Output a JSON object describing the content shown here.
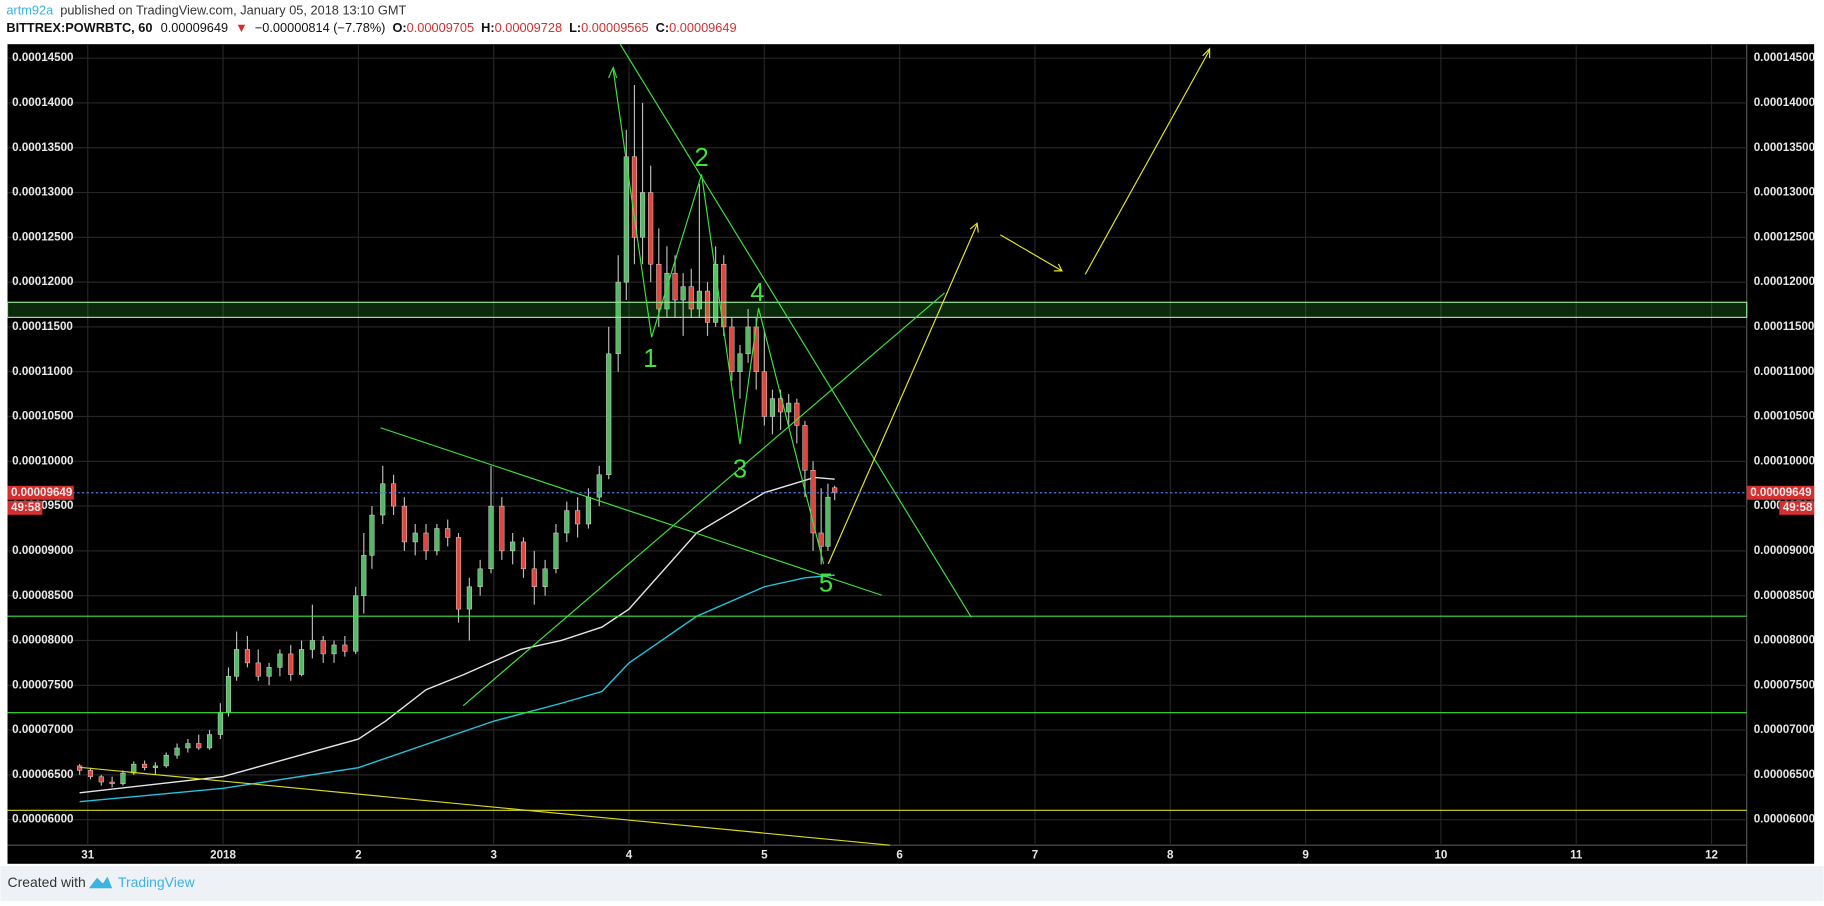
{
  "header": {
    "author": "artm92a",
    "published": "published on TradingView.com, January 05, 2018 13:10 GMT",
    "symbol": "BITTREX:POWRBTC, 60",
    "last": "0.00009649",
    "arrow": "▼",
    "change": "−0.00000814 (−7.78%)",
    "o_label": "O:",
    "o": "0.00009705",
    "h_label": "H:",
    "h": "0.00009728",
    "l_label": "L:",
    "l": "0.00009565",
    "c_label": "C:",
    "c": "0.00009649"
  },
  "chart_data": {
    "type": "candlestick",
    "up_color": "#53b964",
    "down_color": "#e0463c",
    "grid": true,
    "xlim": [
      -0.593,
      12.26
    ],
    "ylim": [
      5.715e-05,
      0.00014656
    ],
    "xticks": [
      {
        "value": 0,
        "label": "31"
      },
      {
        "value": 1,
        "label": "2018"
      },
      2,
      3,
      4,
      5,
      6,
      7,
      8,
      9,
      10,
      11,
      12
    ],
    "yticks": [
      {
        "value": 6e-05,
        "label": "0.00006000"
      },
      {
        "value": 6.5e-05,
        "label": "0.00006500"
      },
      {
        "value": 7e-05,
        "label": "0.00007000"
      },
      {
        "value": 7.5e-05,
        "label": "0.00007500"
      },
      {
        "value": 8e-05,
        "label": "0.00008000"
      },
      {
        "value": 8.5e-05,
        "label": "0.00008500"
      },
      {
        "value": 9e-05,
        "label": "0.00009000"
      },
      {
        "value": 9.5e-05,
        "label": "0.00009500"
      },
      {
        "value": 0.0001,
        "label": "0.00010000"
      },
      {
        "value": 0.000105,
        "label": "0.00010500"
      },
      {
        "value": 0.00011,
        "label": "0.00011000"
      },
      {
        "value": 0.000115,
        "label": "0.00011500"
      },
      {
        "value": 0.00012,
        "label": "0.00012000"
      },
      {
        "value": 0.000125,
        "label": "0.00012500"
      },
      {
        "value": 0.00013,
        "label": "0.00013000"
      },
      {
        "value": 0.000135,
        "label": "0.00013500"
      },
      {
        "value": 0.00014,
        "label": "0.00014000"
      },
      {
        "value": 0.000145,
        "label": "0.00014500"
      }
    ],
    "x": [
      -0.06,
      0.02,
      0.1,
      0.18,
      0.26,
      0.34,
      0.42,
      0.5,
      0.58,
      0.66,
      0.74,
      0.82,
      0.9,
      0.98,
      1.04,
      1.1,
      1.18,
      1.26,
      1.34,
      1.42,
      1.5,
      1.58,
      1.66,
      1.74,
      1.82,
      1.9,
      1.98,
      2.04,
      2.1,
      2.18,
      2.26,
      2.34,
      2.42,
      2.5,
      2.58,
      2.66,
      2.74,
      2.82,
      2.9,
      2.98,
      3.06,
      3.14,
      3.22,
      3.3,
      3.38,
      3.46,
      3.54,
      3.62,
      3.7,
      3.78,
      3.85,
      3.92,
      3.98,
      4.04,
      4.1,
      4.16,
      4.22,
      4.28,
      4.34,
      4.4,
      4.46,
      4.52,
      4.58,
      4.64,
      4.7,
      4.76,
      4.82,
      4.88,
      4.94,
      5.0,
      5.06,
      5.12,
      5.18,
      5.24,
      5.3,
      5.36,
      5.42,
      5.47,
      5.52
    ],
    "open": [
      6.6e-05,
      6.55e-05,
      6.48e-05,
      6.42e-05,
      6.4e-05,
      6.52e-05,
      6.62e-05,
      6.58e-05,
      6.6e-05,
      6.72e-05,
      6.8e-05,
      6.85e-05,
      6.8e-05,
      6.95e-05,
      7.2e-05,
      7.6e-05,
      7.9e-05,
      7.75e-05,
      7.6e-05,
      7.7e-05,
      7.85e-05,
      7.62e-05,
      7.9e-05,
      8e-05,
      7.85e-05,
      7.95e-05,
      7.88e-05,
      8.5e-05,
      8.95e-05,
      9.4e-05,
      9.75e-05,
      9.5e-05,
      9.1e-05,
      9.2e-05,
      9e-05,
      9.25e-05,
      9.15e-05,
      8.35e-05,
      8.6e-05,
      8.8e-05,
      9.5e-05,
      9e-05,
      9.1e-05,
      8.8e-05,
      8.6e-05,
      8.8e-05,
      9.2e-05,
      9.45e-05,
      9.3e-05,
      9.6e-05,
      9.85e-05,
      0.000112,
      0.00012,
      0.000134,
      0.000125,
      0.00013,
      0.000122,
      0.000117,
      0.000121,
      0.000118,
      0.0001195,
      0.000117,
      0.000119,
      0.0001155,
      0.000122,
      0.000115,
      0.00011,
      0.000112,
      0.000115,
      0.00011,
      0.000105,
      0.000107,
      0.0001055,
      0.0001065,
      0.000104,
      9.9e-05,
      9.2e-05,
      9.05e-05,
      9.705e-05
    ],
    "high": [
      6.62e-05,
      6.58e-05,
      6.5e-05,
      6.48e-05,
      6.55e-05,
      6.65e-05,
      6.66e-05,
      6.64e-05,
      6.75e-05,
      6.85e-05,
      6.9e-05,
      6.95e-05,
      7e-05,
      7.3e-05,
      7.7e-05,
      8.1e-05,
      8.05e-05,
      7.9e-05,
      7.75e-05,
      7.9e-05,
      7.95e-05,
      8e-05,
      8.4e-05,
      8.05e-05,
      8e-05,
      8.05e-05,
      8.6e-05,
      9.2e-05,
      9.5e-05,
      9.95e-05,
      9.85e-05,
      9.6e-05,
      9.3e-05,
      9.3e-05,
      9.3e-05,
      9.35e-05,
      9.2e-05,
      8.7e-05,
      8.9e-05,
      9.95e-05,
      9.6e-05,
      9.2e-05,
      9.15e-05,
      9e-05,
      8.9e-05,
      9.3e-05,
      9.55e-05,
      9.6e-05,
      9.7e-05,
      9.95e-05,
      0.000115,
      0.000123,
      0.000137,
      0.000142,
      0.00014,
      0.000133,
      0.000126,
      0.000124,
      0.000123,
      0.000121,
      0.0001215,
      0.000131,
      0.00012,
      0.000124,
      0.000123,
      0.000116,
      0.000113,
      0.000117,
      0.000116,
      0.0001145,
      0.000108,
      0.000108,
      0.0001075,
      0.000107,
      0.0001045,
      0.0001,
      9.7e-05,
      9.75e-05,
      9.728e-05
    ],
    "low": [
      6.5e-05,
      6.45e-05,
      6.38e-05,
      6.36e-05,
      6.38e-05,
      6.5e-05,
      6.55e-05,
      6.5e-05,
      6.58e-05,
      6.68e-05,
      6.75e-05,
      6.78e-05,
      6.78e-05,
      6.9e-05,
      7.15e-05,
      7.55e-05,
      7.7e-05,
      7.55e-05,
      7.5e-05,
      7.6e-05,
      7.55e-05,
      7.6e-05,
      7.8e-05,
      7.75e-05,
      7.75e-05,
      7.82e-05,
      7.85e-05,
      8.3e-05,
      8.8e-05,
      9.3e-05,
      9.4e-05,
      9e-05,
      8.95e-05,
      8.9e-05,
      8.95e-05,
      9.05e-05,
      8.2e-05,
      8e-05,
      8.5e-05,
      8.75e-05,
      8.9e-05,
      8.85e-05,
      8.7e-05,
      8.4e-05,
      8.5e-05,
      8.75e-05,
      9.1e-05,
      9.15e-05,
      9.25e-05,
      9.5e-05,
      9.8e-05,
      0.00011,
      0.000118,
      0.000122,
      0.000122,
      0.00012,
      0.000115,
      0.000116,
      0.000116,
      0.000114,
      0.000116,
      0.000116,
      0.000114,
      0.000115,
      0.000114,
      0.000109,
      0.000107,
      0.000111,
      0.000108,
      0.000104,
      0.000103,
      0.0001035,
      0.000104,
      0.000102,
      9.6e-05,
      9e-05,
      8.85e-05,
      9e-05,
      9.565e-05
    ],
    "close": [
      6.55e-05,
      6.48e-05,
      6.42e-05,
      6.4e-05,
      6.52e-05,
      6.62e-05,
      6.58e-05,
      6.6e-05,
      6.72e-05,
      6.8e-05,
      6.85e-05,
      6.8e-05,
      6.95e-05,
      7.2e-05,
      7.6e-05,
      7.9e-05,
      7.75e-05,
      7.6e-05,
      7.7e-05,
      7.85e-05,
      7.62e-05,
      7.9e-05,
      8e-05,
      7.85e-05,
      7.95e-05,
      7.88e-05,
      8.5e-05,
      8.95e-05,
      9.4e-05,
      9.75e-05,
      9.5e-05,
      9.1e-05,
      9.2e-05,
      9e-05,
      9.25e-05,
      9.15e-05,
      8.35e-05,
      8.6e-05,
      8.8e-05,
      9.5e-05,
      9e-05,
      9.1e-05,
      8.8e-05,
      8.6e-05,
      8.8e-05,
      9.2e-05,
      9.45e-05,
      9.3e-05,
      9.6e-05,
      9.85e-05,
      0.000112,
      0.00012,
      0.000134,
      0.000125,
      0.00013,
      0.000122,
      0.000117,
      0.000121,
      0.000118,
      0.0001195,
      0.000117,
      0.000119,
      0.0001155,
      0.000122,
      0.000115,
      0.00011,
      0.000112,
      0.000115,
      0.00011,
      0.000105,
      0.000107,
      0.0001055,
      0.0001065,
      0.000104,
      9.9e-05,
      9.2e-05,
      9.05e-05,
      9.6e-05,
      9.649e-05
    ],
    "overlays": [
      {
        "color": "#e6e6e6",
        "x": [
          -0.06,
          1.0,
          2.0,
          2.2,
          2.5,
          2.78,
          3.2,
          3.5,
          3.8,
          4.0,
          4.5,
          5.0,
          5.37,
          5.52
        ],
        "values": [
          6.3e-05,
          6.48e-05,
          6.9e-05,
          7.1e-05,
          7.45e-05,
          7.62e-05,
          7.9e-05,
          8e-05,
          8.15e-05,
          8.35e-05,
          9.2e-05,
          9.65e-05,
          9.82e-05,
          9.8e-05
        ]
      },
      {
        "color": "#22c4dc",
        "x": [
          -0.06,
          1.0,
          2.0,
          2.5,
          3.0,
          3.5,
          3.8,
          4.0,
          4.5,
          5.0,
          5.3,
          5.52
        ],
        "values": [
          6.2e-05,
          6.35e-05,
          6.58e-05,
          6.84e-05,
          7.1e-05,
          7.3e-05,
          7.43e-05,
          7.75e-05,
          8.27e-05,
          8.6e-05,
          8.7e-05,
          8.73e-05
        ]
      }
    ],
    "last_price": {
      "value": 9.649e-05,
      "label": "0.00009649"
    },
    "countdown": "49:58",
    "annotations": [
      "1",
      "2",
      "3",
      "4",
      "5"
    ]
  },
  "footer": {
    "created": "Created with",
    "brand": "TradingView"
  }
}
